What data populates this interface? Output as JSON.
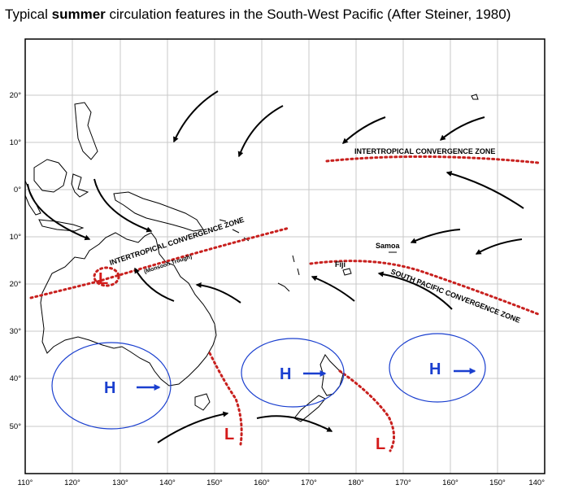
{
  "title": {
    "pre": "Typical ",
    "bold": "summer",
    "post": " circulation features in the South-West Pacific  (After Steiner, 1980)"
  },
  "map": {
    "lon_labels": [
      "110°",
      "120°",
      "130°",
      "140°",
      "150°",
      "160°",
      "170°",
      "180°",
      "170°",
      "160°",
      "150°",
      "140°"
    ],
    "lat_labels": [
      "20°",
      "10°",
      "0°",
      "10°",
      "20°",
      "30°",
      "40°",
      "50°"
    ],
    "itcz_east_label": "INTERTROPICAL CONVERGENCE ZONE",
    "itcz_west_label": "INTERTROPICAL CONVERGENCE ZONE",
    "monsoon_label": "(Monsoon Trough)",
    "spcz_label": "SOUTH PACIFIC CONVERGENCE ZONE",
    "places": {
      "samoa": "Samoa",
      "fiji": "Fiji"
    },
    "high_symbol": "H",
    "low_symbol": "L",
    "colors": {
      "high": "#1a3fcf",
      "low": "#d41a1a",
      "zone": "#c8201e",
      "grid": "#c8c8c8",
      "land": "#000000"
    }
  }
}
